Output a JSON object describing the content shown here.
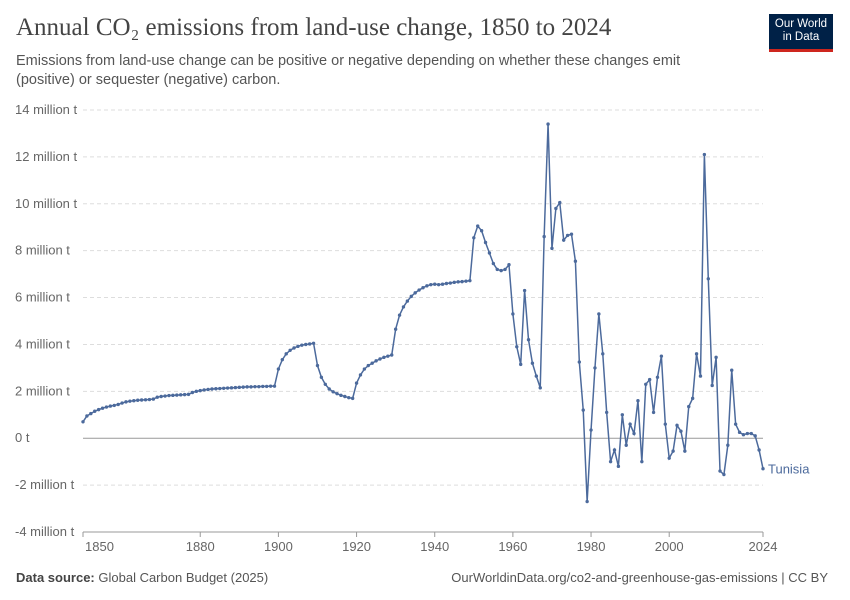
{
  "logo": "Our World in Data",
  "chart_data": {
    "type": "line",
    "title": "Annual CO₂ emissions from land-use change, 1850 to 2024",
    "subtitle": "Emissions from land-use change can be positive or negative depending on whether these changes emit (positive) or sequester (negative) carbon.",
    "x": [
      1850,
      1851,
      1852,
      1853,
      1854,
      1855,
      1856,
      1857,
      1858,
      1859,
      1860,
      1861,
      1862,
      1863,
      1864,
      1865,
      1866,
      1867,
      1868,
      1869,
      1870,
      1871,
      1872,
      1873,
      1874,
      1875,
      1876,
      1877,
      1878,
      1879,
      1880,
      1881,
      1882,
      1883,
      1884,
      1885,
      1886,
      1887,
      1888,
      1889,
      1890,
      1891,
      1892,
      1893,
      1894,
      1895,
      1896,
      1897,
      1898,
      1899,
      1900,
      1901,
      1902,
      1903,
      1904,
      1905,
      1906,
      1907,
      1908,
      1909,
      1910,
      1911,
      1912,
      1913,
      1914,
      1915,
      1916,
      1917,
      1918,
      1919,
      1920,
      1921,
      1922,
      1923,
      1924,
      1925,
      1926,
      1927,
      1928,
      1929,
      1930,
      1931,
      1932,
      1933,
      1934,
      1935,
      1936,
      1937,
      1938,
      1939,
      1940,
      1941,
      1942,
      1943,
      1944,
      1945,
      1946,
      1947,
      1948,
      1949,
      1950,
      1951,
      1952,
      1953,
      1954,
      1955,
      1956,
      1957,
      1958,
      1959,
      1960,
      1961,
      1962,
      1963,
      1964,
      1965,
      1966,
      1967,
      1968,
      1969,
      1970,
      1971,
      1972,
      1973,
      1974,
      1975,
      1976,
      1977,
      1978,
      1979,
      1980,
      1981,
      1982,
      1983,
      1984,
      1985,
      1986,
      1987,
      1988,
      1989,
      1990,
      1991,
      1992,
      1993,
      1994,
      1995,
      1996,
      1997,
      1998,
      1999,
      2000,
      2001,
      2002,
      2003,
      2004,
      2005,
      2006,
      2007,
      2008,
      2009,
      2010,
      2011,
      2012,
      2013,
      2014,
      2015,
      2016,
      2017,
      2018,
      2019,
      2020,
      2021,
      2022,
      2023,
      2024
    ],
    "series": [
      {
        "name": "Tunisia",
        "color": "#4c6a9c",
        "values": [
          0.7,
          0.95,
          1.05,
          1.15,
          1.22,
          1.28,
          1.33,
          1.37,
          1.4,
          1.44,
          1.5,
          1.55,
          1.58,
          1.6,
          1.62,
          1.63,
          1.64,
          1.65,
          1.67,
          1.75,
          1.78,
          1.8,
          1.82,
          1.83,
          1.84,
          1.85,
          1.86,
          1.87,
          1.95,
          2.0,
          2.03,
          2.06,
          2.08,
          2.1,
          2.11,
          2.12,
          2.13,
          2.14,
          2.15,
          2.16,
          2.17,
          2.18,
          2.19,
          2.19,
          2.2,
          2.2,
          2.21,
          2.21,
          2.22,
          2.22,
          2.95,
          3.35,
          3.6,
          3.75,
          3.85,
          3.92,
          3.97,
          4.0,
          4.02,
          4.05,
          3.1,
          2.6,
          2.3,
          2.1,
          1.98,
          1.9,
          1.83,
          1.78,
          1.73,
          1.7,
          2.35,
          2.7,
          2.95,
          3.1,
          3.2,
          3.3,
          3.38,
          3.45,
          3.5,
          3.55,
          4.65,
          5.25,
          5.6,
          5.85,
          6.05,
          6.2,
          6.32,
          6.42,
          6.5,
          6.55,
          6.57,
          6.55,
          6.57,
          6.6,
          6.62,
          6.65,
          6.67,
          6.68,
          6.7,
          6.72,
          8.55,
          9.05,
          8.85,
          8.35,
          7.9,
          7.45,
          7.2,
          7.15,
          7.2,
          7.4,
          5.3,
          3.9,
          3.15,
          6.3,
          4.2,
          3.2,
          2.65,
          2.15,
          8.6,
          13.4,
          8.1,
          9.8,
          10.05,
          8.45,
          8.65,
          8.7,
          7.55,
          3.25,
          1.2,
          -2.7,
          0.35,
          3.0,
          5.3,
          3.6,
          1.1,
          -1.0,
          -0.5,
          -1.2,
          1.0,
          -0.3,
          0.6,
          0.2,
          1.6,
          -1.0,
          2.3,
          2.5,
          1.1,
          2.6,
          3.5,
          0.6,
          -0.85,
          -0.55,
          0.55,
          0.3,
          -0.55,
          1.35,
          1.7,
          3.6,
          2.65,
          12.1,
          6.8,
          2.25,
          3.45,
          -1.4,
          -1.55,
          -0.3,
          2.9,
          0.6,
          0.25,
          0.15,
          0.2,
          0.2,
          0.1,
          -0.5,
          -1.3
        ]
      }
    ],
    "xlim": [
      1850,
      2024
    ],
    "xticks": [
      1850,
      1880,
      1900,
      1920,
      1940,
      1960,
      1980,
      2000,
      2024
    ],
    "ylim": [
      -4,
      14
    ],
    "yticks": [
      {
        "value": -4,
        "label": "-4 million t"
      },
      {
        "value": -2,
        "label": "-2 million t"
      },
      {
        "value": 0,
        "label": "0 t"
      },
      {
        "value": 2,
        "label": "2 million t"
      },
      {
        "value": 4,
        "label": "4 million t"
      },
      {
        "value": 6,
        "label": "6 million t"
      },
      {
        "value": 8,
        "label": "8 million t"
      },
      {
        "value": 10,
        "label": "10 million t"
      },
      {
        "value": 12,
        "label": "12 million t"
      },
      {
        "value": 14,
        "label": "14 million t"
      }
    ],
    "grid": true,
    "source_label": "Data source:",
    "source": "Global Carbon Budget (2025)",
    "footer_right": "OurWorldinData.org/co2-and-greenhouse-gas-emissions | CC BY"
  }
}
